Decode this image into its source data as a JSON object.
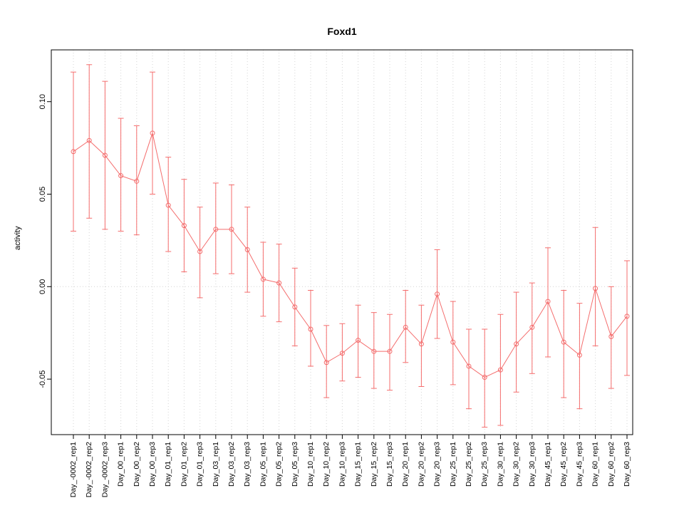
{
  "chart_data": {
    "type": "line",
    "title": "Foxd1",
    "ylabel": "activity",
    "xlabel": "",
    "categories": [
      "Day_-0002_rep1",
      "Day_-0002_rep2",
      "Day_-0002_rep3",
      "Day_00_rep1",
      "Day_00_rep2",
      "Day_00_rep3",
      "Day_01_rep1",
      "Day_01_rep2",
      "Day_01_rep3",
      "Day_03_rep1",
      "Day_03_rep2",
      "Day_03_rep3",
      "Day_05_rep1",
      "Day_05_rep2",
      "Day_05_rep3",
      "Day_10_rep1",
      "Day_10_rep2",
      "Day_10_rep3",
      "Day_15_rep1",
      "Day_15_rep2",
      "Day_15_rep3",
      "Day_20_rep1",
      "Day_20_rep2",
      "Day_20_rep3",
      "Day_25_rep1",
      "Day_25_rep2",
      "Day_25_rep3",
      "Day_30_rep1",
      "Day_30_rep2",
      "Day_30_rep3",
      "Day_45_rep1",
      "Day_45_rep2",
      "Day_45_rep3",
      "Day_60_rep1",
      "Day_60_rep2",
      "Day_60_rep3"
    ],
    "series": [
      {
        "name": "activity",
        "color": "#f46d6d",
        "values": [
          0.073,
          0.079,
          0.071,
          0.06,
          0.057,
          0.083,
          0.044,
          0.033,
          0.019,
          0.031,
          0.031,
          0.02,
          0.004,
          0.002,
          -0.011,
          -0.023,
          -0.041,
          -0.036,
          -0.029,
          -0.035,
          -0.035,
          -0.022,
          -0.031,
          -0.004,
          -0.03,
          -0.043,
          -0.049,
          -0.045,
          -0.031,
          -0.022,
          -0.008,
          -0.03,
          -0.037,
          -0.001,
          -0.027,
          -0.016
        ],
        "error_low": [
          0.03,
          0.037,
          0.031,
          0.03,
          0.028,
          0.05,
          0.019,
          0.008,
          -0.006,
          0.007,
          0.007,
          -0.003,
          -0.016,
          -0.019,
          -0.032,
          -0.043,
          -0.06,
          -0.051,
          -0.049,
          -0.055,
          -0.056,
          -0.041,
          -0.054,
          -0.028,
          -0.053,
          -0.066,
          -0.076,
          -0.075,
          -0.057,
          -0.047,
          -0.038,
          -0.06,
          -0.066,
          -0.032,
          -0.055,
          -0.048
        ],
        "error_high": [
          0.116,
          0.12,
          0.111,
          0.091,
          0.087,
          0.116,
          0.07,
          0.058,
          0.043,
          0.056,
          0.055,
          0.043,
          0.024,
          0.023,
          0.01,
          -0.002,
          -0.021,
          -0.02,
          -0.01,
          -0.014,
          -0.015,
          -0.002,
          -0.01,
          0.02,
          -0.008,
          -0.023,
          -0.023,
          -0.015,
          -0.003,
          0.002,
          0.021,
          -0.002,
          -0.009,
          0.032,
          0.0,
          0.014
        ]
      }
    ],
    "ylim": [
      -0.08,
      0.128
    ],
    "yticks": [
      -0.05,
      0.0,
      0.05,
      0.1
    ],
    "ytick_labels": [
      "-0.05",
      "0.00",
      "0.05",
      "0.10"
    ],
    "grid": {
      "vertical_dotted": true,
      "zero_line_dotted": true,
      "color": "#d4d4d4"
    },
    "point_style": "open-circle",
    "error_bar_caps": true,
    "legend": "none"
  }
}
